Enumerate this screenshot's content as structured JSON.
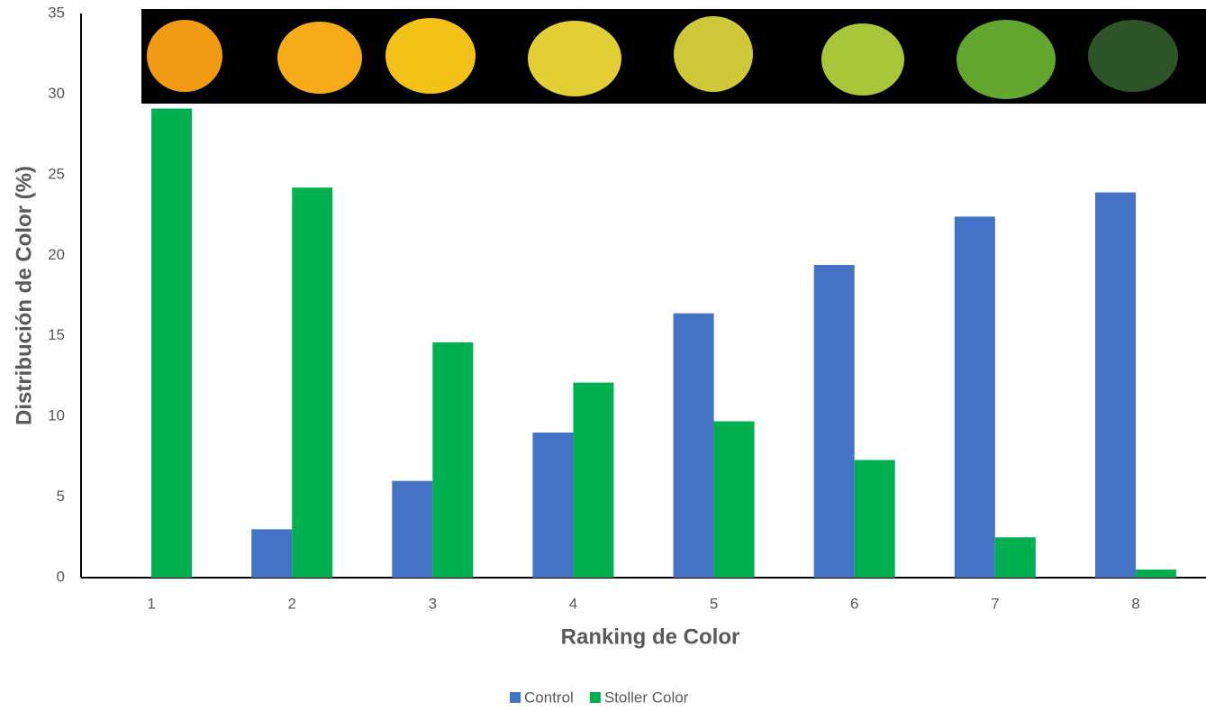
{
  "chart_data": {
    "type": "bar",
    "xlabel": "Ranking de Color",
    "ylabel": "Distribución de Color (%)",
    "categories": [
      "1",
      "2",
      "3",
      "4",
      "5",
      "6",
      "7",
      "8"
    ],
    "series": [
      {
        "name": "Control",
        "color": "#4472c4",
        "values": [
          0,
          3,
          6,
          9,
          16.4,
          19.4,
          22.4,
          23.9
        ]
      },
      {
        "name": "Stoller Color",
        "color": "#00b050",
        "values": [
          29.1,
          24.2,
          14.6,
          12.1,
          9.7,
          7.3,
          2.5,
          0.5
        ]
      }
    ],
    "ylim": [
      0,
      35
    ],
    "yticks": [
      0,
      5,
      10,
      15,
      20,
      25,
      30,
      35
    ],
    "grid": false,
    "legend": "bottom"
  }
}
